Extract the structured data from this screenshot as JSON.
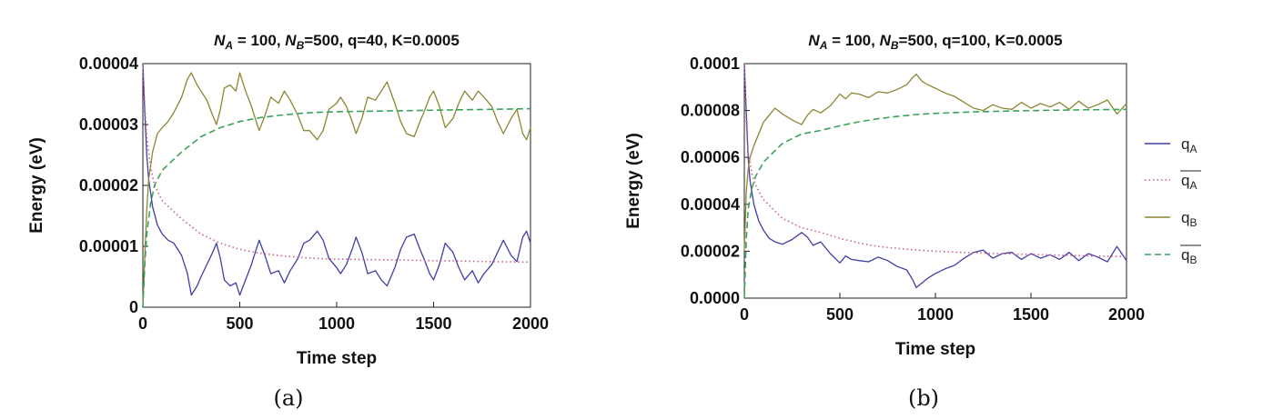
{
  "colors": {
    "qA": "#3f3fa6",
    "qA_avg": "#c9608f",
    "qB": "#8c8632",
    "qB_avg": "#3aa35a"
  },
  "legend": {
    "qA": "q",
    "qA_sub": "A",
    "qA_avg": "q",
    "qA_avg_sub": "A",
    "qB": "q",
    "qB_sub": "B",
    "qB_avg": "q",
    "qB_avg_sub": "B"
  },
  "chart_data": [
    {
      "type": "line",
      "panel": "a",
      "caption": "(a)",
      "title": {
        "N": "N",
        "subA": "A",
        "eqA": " = 100, ",
        "subB": "B",
        "eqB": "=500, q=40, K=0.0005"
      },
      "xlabel": "Time step",
      "ylabel": "Energy (eV)",
      "xlim": [
        0,
        2000
      ],
      "ylim": [
        0,
        4e-05
      ],
      "xticks": [
        0,
        500,
        1000,
        1500,
        2000
      ],
      "xtick_labels": [
        "0",
        "500",
        "1000",
        "1500",
        "2000"
      ],
      "yticks": [
        0,
        1e-05,
        2e-05,
        3e-05,
        4e-05
      ],
      "ytick_labels": [
        "0",
        "0.00001",
        "0.00002",
        "0.00003",
        "0.00004"
      ],
      "series": [
        {
          "key": "qA",
          "name": "qA",
          "style": "solid",
          "x": [
            0,
            10,
            20,
            30,
            50,
            75,
            100,
            130,
            160,
            200,
            230,
            250,
            280,
            300,
            330,
            360,
            380,
            400,
            420,
            450,
            480,
            500,
            530,
            560,
            580,
            600,
            630,
            660,
            700,
            730,
            760,
            800,
            830,
            860,
            900,
            930,
            960,
            1000,
            1020,
            1050,
            1080,
            1100,
            1130,
            1160,
            1200,
            1230,
            1260,
            1300,
            1330,
            1360,
            1400,
            1430,
            1450,
            1480,
            1500,
            1530,
            1560,
            1600,
            1630,
            1660,
            1700,
            1730,
            1760,
            1800,
            1830,
            1860,
            1900,
            1930,
            1960,
            1980,
            2000
          ],
          "y": [
            4e-05,
            3.2e-05,
            2.5e-05,
            2.1e-05,
            1.65e-05,
            1.35e-05,
            1.2e-05,
            1.1e-05,
            1.05e-05,
            8.5e-06,
            5.5e-06,
            2e-06,
            3.5e-06,
            5e-06,
            7e-06,
            9e-06,
            1.05e-05,
            8e-06,
            4.5e-06,
            3.5e-06,
            4e-06,
            2e-06,
            4.5e-06,
            7e-06,
            9e-06,
            1.1e-05,
            8.5e-06,
            5.5e-06,
            6e-06,
            4e-06,
            6e-06,
            8e-06,
            1.05e-05,
            1.1e-05,
            1.25e-05,
            1.1e-05,
            8e-06,
            6.5e-06,
            5.5e-06,
            7e-06,
            9.5e-06,
            1.15e-05,
            9e-06,
            5.5e-06,
            6e-06,
            4.5e-06,
            3.5e-06,
            6.5e-06,
            9.5e-06,
            1.15e-05,
            1.2e-05,
            9.5e-06,
            8e-06,
            5.5e-06,
            4.5e-06,
            7e-06,
            1.05e-05,
            9e-06,
            6.5e-06,
            4.5e-06,
            6e-06,
            4e-06,
            5.5e-06,
            7e-06,
            9e-06,
            1.1e-05,
            8.5e-06,
            7.5e-06,
            1.15e-05,
            1.25e-05,
            1.05e-05
          ]
        },
        {
          "key": "qA_avg",
          "name": "qA average",
          "style": "dotted",
          "x": [
            0,
            10,
            20,
            40,
            60,
            100,
            150,
            200,
            300,
            400,
            500,
            600,
            700,
            800,
            900,
            1000,
            1200,
            1400,
            1600,
            1800,
            2000
          ],
          "y": [
            4e-05,
            3.3e-05,
            2.8e-05,
            2.3e-05,
            2e-05,
            1.75e-05,
            1.6e-05,
            1.45e-05,
            1.2e-05,
            1.05e-05,
            9.5e-06,
            8.9e-06,
            8.5e-06,
            8.2e-06,
            8e-06,
            7.9e-06,
            7.8e-06,
            7.7e-06,
            7.6e-06,
            7.5e-06,
            7.4e-06
          ]
        },
        {
          "key": "qB",
          "name": "qB",
          "style": "solid",
          "x": [
            0,
            10,
            20,
            30,
            50,
            75,
            100,
            130,
            160,
            200,
            230,
            250,
            280,
            300,
            330,
            360,
            380,
            400,
            420,
            450,
            480,
            500,
            530,
            560,
            580,
            600,
            630,
            660,
            700,
            730,
            760,
            800,
            830,
            860,
            900,
            930,
            960,
            1000,
            1020,
            1050,
            1080,
            1100,
            1130,
            1160,
            1200,
            1230,
            1260,
            1300,
            1330,
            1360,
            1400,
            1430,
            1450,
            1480,
            1500,
            1530,
            1560,
            1600,
            1630,
            1660,
            1700,
            1730,
            1760,
            1800,
            1830,
            1860,
            1900,
            1930,
            1960,
            1980,
            2000
          ],
          "y": [
            0,
            8.5e-06,
            1.6e-05,
            2.1e-05,
            2.55e-05,
            2.85e-05,
            2.95e-05,
            3.05e-05,
            3.2e-05,
            3.45e-05,
            3.75e-05,
            3.85e-05,
            3.65e-05,
            3.55e-05,
            3.4e-05,
            3.15e-05,
            3e-05,
            3.25e-05,
            3.6e-05,
            3.65e-05,
            3.55e-05,
            3.85e-05,
            3.55e-05,
            3.3e-05,
            3.1e-05,
            2.9e-05,
            3.15e-05,
            3.45e-05,
            3.35e-05,
            3.55e-05,
            3.4e-05,
            3.15e-05,
            2.9e-05,
            2.9e-05,
            2.75e-05,
            2.9e-05,
            3.25e-05,
            3.35e-05,
            3.45e-05,
            3.3e-05,
            3.05e-05,
            2.85e-05,
            3.1e-05,
            3.45e-05,
            3.4e-05,
            3.55e-05,
            3.7e-05,
            3.35e-05,
            3.05e-05,
            2.85e-05,
            2.8e-05,
            3.05e-05,
            3.2e-05,
            3.45e-05,
            3.55e-05,
            3.3e-05,
            2.95e-05,
            3.1e-05,
            3.35e-05,
            3.55e-05,
            3.4e-05,
            3.55e-05,
            3.45e-05,
            3.3e-05,
            3.05e-05,
            2.85e-05,
            3.1e-05,
            3.25e-05,
            2.85e-05,
            2.75e-05,
            2.95e-05
          ]
        },
        {
          "key": "qB_avg",
          "name": "qB average",
          "style": "dashed",
          "x": [
            0,
            10,
            20,
            40,
            60,
            100,
            150,
            200,
            300,
            400,
            500,
            600,
            700,
            800,
            900,
            1000,
            1200,
            1400,
            1600,
            1800,
            2000
          ],
          "y": [
            0,
            7e-06,
            1.2e-05,
            1.7e-05,
            2e-05,
            2.25e-05,
            2.4e-05,
            2.55e-05,
            2.8e-05,
            2.95e-05,
            3.05e-05,
            3.11e-05,
            3.15e-05,
            3.18e-05,
            3.2e-05,
            3.21e-05,
            3.22e-05,
            3.23e-05,
            3.24e-05,
            3.25e-05,
            3.26e-05
          ]
        }
      ]
    },
    {
      "type": "line",
      "panel": "b",
      "caption": "(b)",
      "title": {
        "N": "N",
        "subA": "A",
        "eqA": " = 100, ",
        "subB": "B",
        "eqB": "=500, q=100, K=0.0005"
      },
      "xlabel": "Time step",
      "ylabel": "Energy (eV)",
      "xlim": [
        0,
        2000
      ],
      "ylim": [
        0,
        0.0001
      ],
      "xticks": [
        0,
        500,
        1000,
        1500,
        2000
      ],
      "xtick_labels": [
        "0",
        "500",
        "1000",
        "1500",
        "2000"
      ],
      "yticks": [
        0,
        2e-05,
        4e-05,
        6e-05,
        8e-05,
        0.0001
      ],
      "ytick_labels": [
        "0.0000",
        "0.00002",
        "0.00004",
        "0.00006",
        "0.00008",
        "0.0001"
      ],
      "series": [
        {
          "key": "qA",
          "name": "qA",
          "style": "solid",
          "x": [
            0,
            10,
            20,
            30,
            50,
            75,
            100,
            130,
            160,
            200,
            250,
            300,
            330,
            360,
            400,
            450,
            500,
            530,
            560,
            600,
            650,
            700,
            750,
            800,
            850,
            880,
            900,
            930,
            960,
            1000,
            1050,
            1100,
            1150,
            1200,
            1250,
            1300,
            1350,
            1400,
            1450,
            1500,
            1550,
            1600,
            1650,
            1700,
            1750,
            1800,
            1850,
            1900,
            1950,
            2000
          ],
          "y": [
            0.0001,
            8e-05,
            6e-05,
            5e-05,
            4e-05,
            3.3e-05,
            2.9e-05,
            2.55e-05,
            2.4e-05,
            2.3e-05,
            2.5e-05,
            2.8e-05,
            2.6e-05,
            2.25e-05,
            2.4e-05,
            1.9e-05,
            1.5e-05,
            1.8e-05,
            1.65e-05,
            1.6e-05,
            1.55e-05,
            1.75e-05,
            1.6e-05,
            1.35e-05,
            1.2e-05,
            8e-06,
            4.5e-06,
            6.5e-06,
            8.5e-06,
            1.05e-05,
            1.25e-05,
            1.4e-05,
            1.7e-05,
            1.95e-05,
            2.05e-05,
            1.7e-05,
            1.9e-05,
            1.95e-05,
            1.65e-05,
            1.9e-05,
            1.7e-05,
            1.85e-05,
            1.65e-05,
            1.95e-05,
            1.6e-05,
            1.9e-05,
            1.75e-05,
            1.55e-05,
            2.2e-05,
            1.6e-05
          ]
        },
        {
          "key": "qA_avg",
          "name": "qA average",
          "style": "dotted",
          "x": [
            0,
            10,
            20,
            40,
            60,
            100,
            150,
            200,
            300,
            400,
            500,
            600,
            700,
            800,
            900,
            1000,
            1200,
            1400,
            1600,
            1800,
            2000
          ],
          "y": [
            0.0001,
            7.5e-05,
            6.2e-05,
            5.3e-05,
            4.8e-05,
            4.2e-05,
            3.8e-05,
            3.4e-05,
            3e-05,
            2.8e-05,
            2.55e-05,
            2.35e-05,
            2.2e-05,
            2.12e-05,
            2.05e-05,
            2e-05,
            1.93e-05,
            1.88e-05,
            1.84e-05,
            1.8e-05,
            1.77e-05
          ]
        },
        {
          "key": "qB",
          "name": "qB",
          "style": "solid",
          "x": [
            0,
            10,
            20,
            30,
            50,
            75,
            100,
            130,
            160,
            200,
            250,
            300,
            330,
            360,
            400,
            450,
            500,
            530,
            560,
            600,
            650,
            700,
            750,
            800,
            850,
            880,
            900,
            930,
            960,
            1000,
            1050,
            1100,
            1150,
            1200,
            1250,
            1300,
            1350,
            1400,
            1450,
            1500,
            1550,
            1600,
            1650,
            1700,
            1750,
            1800,
            1850,
            1900,
            1950,
            2000
          ],
          "y": [
            2e-05,
            4.5e-05,
            5.5e-05,
            6e-05,
            6.5e-05,
            7e-05,
            7.5e-05,
            7.8e-05,
            8.1e-05,
            7.85e-05,
            7.6e-05,
            7.4e-05,
            7.8e-05,
            8.05e-05,
            7.9e-05,
            8.2e-05,
            8.7e-05,
            8.5e-05,
            8.75e-05,
            8.7e-05,
            8.55e-05,
            8.8e-05,
            8.75e-05,
            8.9e-05,
            9.1e-05,
            9.4e-05,
            9.55e-05,
            9.25e-05,
            9.1e-05,
            8.95e-05,
            8.75e-05,
            8.6e-05,
            8.35e-05,
            8.1e-05,
            8e-05,
            8.25e-05,
            8.1e-05,
            8.05e-05,
            8.35e-05,
            8.1e-05,
            8.3e-05,
            8.15e-05,
            8.35e-05,
            8.05e-05,
            8.4e-05,
            8.1e-05,
            8.25e-05,
            8.45e-05,
            7.85e-05,
            8.3e-05
          ]
        },
        {
          "key": "qB_avg",
          "name": "qB average",
          "style": "dashed",
          "x": [
            0,
            10,
            20,
            40,
            60,
            100,
            150,
            200,
            300,
            400,
            500,
            600,
            700,
            800,
            900,
            1000,
            1200,
            1400,
            1600,
            1800,
            2000
          ],
          "y": [
            0,
            2.5e-05,
            3.8e-05,
            4.7e-05,
            5.2e-05,
            5.8e-05,
            6.2e-05,
            6.6e-05,
            7e-05,
            7.15e-05,
            7.35e-05,
            7.52e-05,
            7.65e-05,
            7.75e-05,
            7.83e-05,
            7.88e-05,
            7.94e-05,
            7.98e-05,
            8.01e-05,
            8.03e-05,
            8.05e-05
          ]
        }
      ]
    }
  ]
}
